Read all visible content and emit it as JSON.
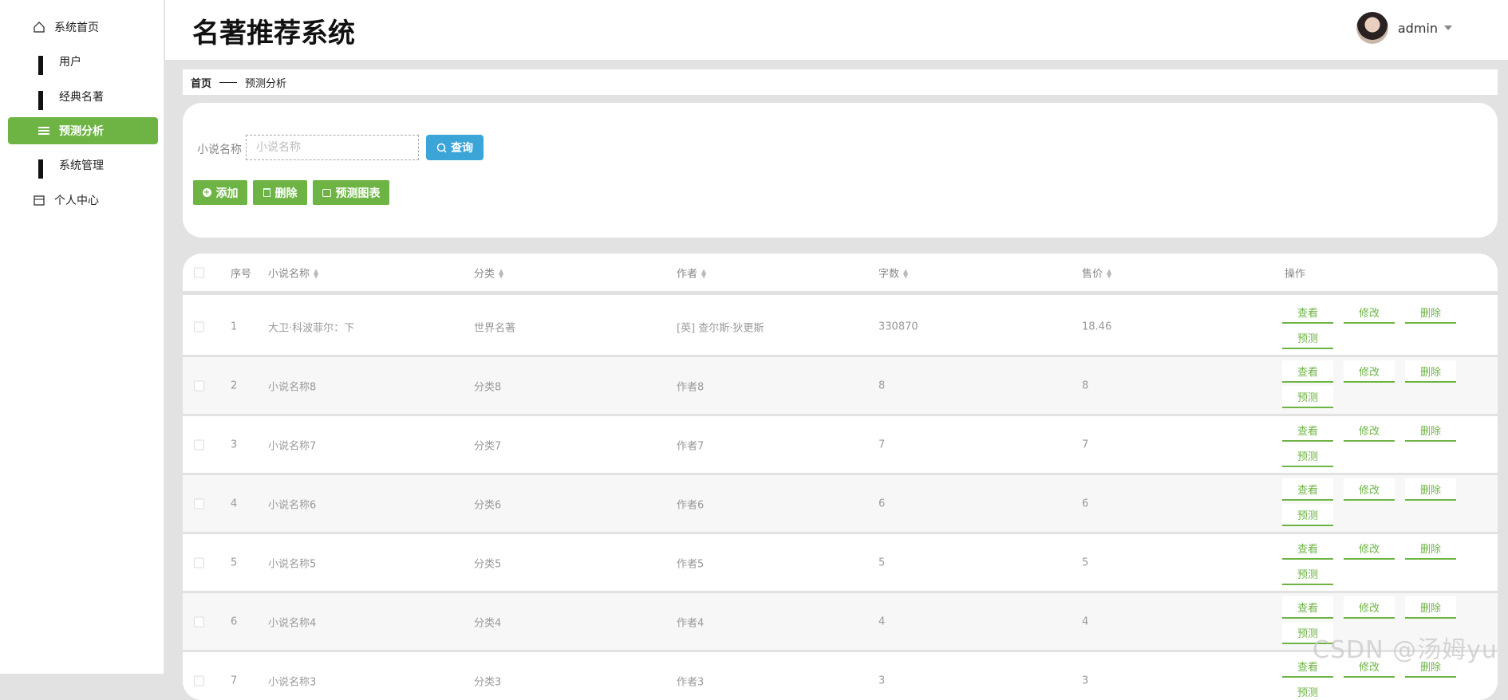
{
  "sidebar": {
    "items": [
      {
        "label": "系统首页",
        "icon": "home-icon"
      },
      {
        "label": "用户",
        "icon": "grid-icon"
      },
      {
        "label": "经典名著",
        "icon": "grid-icon"
      },
      {
        "label": "预测分析",
        "icon": "menu-icon",
        "active": true
      },
      {
        "label": "系统管理",
        "icon": "grid-icon"
      },
      {
        "label": "个人中心",
        "icon": "card-icon"
      }
    ]
  },
  "header": {
    "title": "名著推荐系统",
    "user": "admin"
  },
  "breadcrumb": {
    "home": "首页",
    "current": "预测分析"
  },
  "search": {
    "label": "小说名称",
    "placeholder": "小说名称",
    "query_button": "查询"
  },
  "actions": {
    "add": "添加",
    "delete": "删除",
    "chart": "预测图表"
  },
  "colors": {
    "accent": "#6db444",
    "query": "#3aa5d6"
  },
  "table": {
    "columns": [
      "序号",
      "小说名称",
      "分类",
      "作者",
      "字数",
      "售价",
      "操作"
    ],
    "row_actions": [
      "查看",
      "修改",
      "删除",
      "预测"
    ],
    "rows": [
      [
        "1",
        "大卫·科波菲尔：下",
        "世界名著",
        "[英] 查尔斯·狄更斯",
        "330870",
        "18.46"
      ],
      [
        "2",
        "小说名称8",
        "分类8",
        "作者8",
        "8",
        "8"
      ],
      [
        "3",
        "小说名称7",
        "分类7",
        "作者7",
        "7",
        "7"
      ],
      [
        "4",
        "小说名称6",
        "分类6",
        "作者6",
        "6",
        "6"
      ],
      [
        "5",
        "小说名称5",
        "分类5",
        "作者5",
        "5",
        "5"
      ],
      [
        "6",
        "小说名称4",
        "分类4",
        "作者4",
        "4",
        "4"
      ],
      [
        "7",
        "小说名称3",
        "分类3",
        "作者3",
        "3",
        "3"
      ]
    ]
  },
  "watermark": "CSDN @汤姆yu"
}
